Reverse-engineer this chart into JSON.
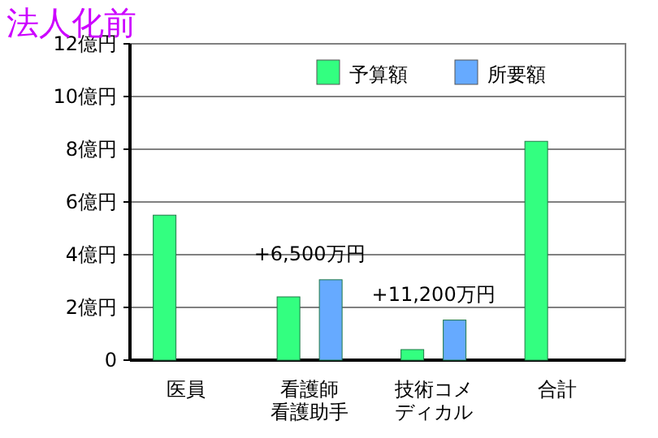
{
  "chart_data": {
    "type": "bar",
    "title": "法人化前",
    "categories": [
      "医員",
      "看護師看護助手",
      "技術コメディカル",
      "合計"
    ],
    "series": [
      {
        "name": "予算額",
        "color": "#33ff80",
        "values": [
          5.5,
          2.4,
          0.4,
          8.3
        ]
      },
      {
        "name": "所要額",
        "color": "#66aaff",
        "values": [
          null,
          3.05,
          1.52,
          null
        ]
      }
    ],
    "ylim": [
      0,
      12
    ],
    "yticks": [
      0,
      {
        "value": 2,
        "label": "2億円"
      },
      {
        "value": 4,
        "label": "4億円"
      },
      {
        "value": 6,
        "label": "6億円"
      },
      {
        "value": 8,
        "label": "8億円"
      },
      {
        "value": 10,
        "label": "10億円"
      },
      {
        "value": 12,
        "label": "12億円"
      }
    ],
    "grid": "y",
    "legend": "top right",
    "annotations": [
      "+6,500万円",
      "+11,200万円"
    ]
  }
}
